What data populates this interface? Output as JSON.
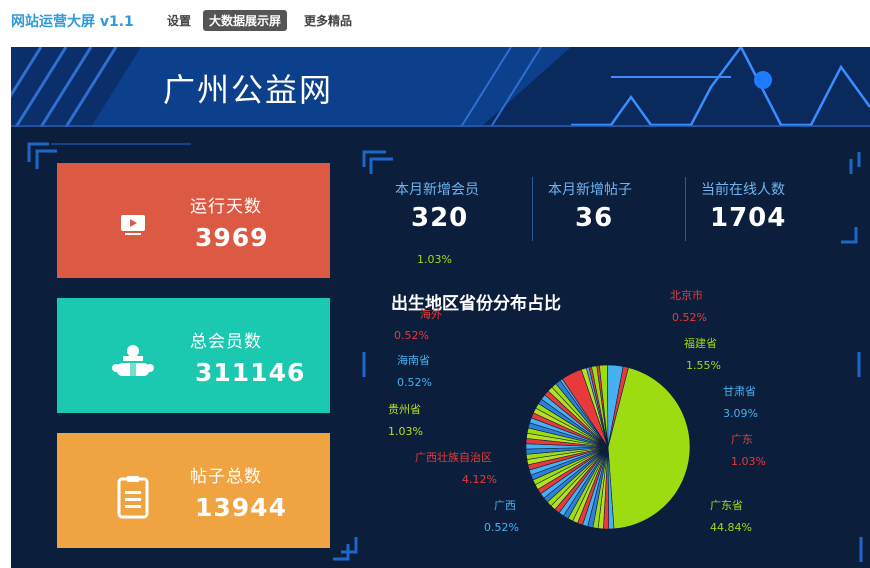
{
  "nav": {
    "app_title": "网站运营大屏 v1.1",
    "items": [
      "设置",
      "大数据展示屏",
      "更多精品"
    ]
  },
  "dashboard": {
    "site_title": "广州公益网",
    "cards": [
      {
        "label": "运行天数",
        "value": "3969",
        "icon": "tv-play-icon",
        "color": "#dc5a43"
      },
      {
        "label": "总会员数",
        "value": "311146",
        "icon": "users-icon",
        "color": "#1bc8b0"
      },
      {
        "label": "帖子总数",
        "value": "13944",
        "icon": "clipboard-icon",
        "color": "#f0a441"
      }
    ],
    "stats": [
      {
        "label": "本月新增会员",
        "value": "320"
      },
      {
        "label": "本月新增帖子",
        "value": "36"
      },
      {
        "label": "当前在线人数",
        "value": "1704"
      }
    ]
  },
  "chart_data": {
    "type": "pie",
    "title": "出生地区省份分布占比",
    "slices": [
      {
        "name": "广东省",
        "value": 44.84,
        "color": "#9edc12"
      },
      {
        "name": "广西",
        "value": 0.52,
        "color": "#47b0f0"
      },
      {
        "name": "广西壮族自治区",
        "value": 4.12,
        "color": "#e83a3a"
      },
      {
        "name": "贵州省",
        "value": 1.03,
        "color": "#b8e020"
      },
      {
        "name": "海南省",
        "value": 0.52,
        "color": "#47b0f0"
      },
      {
        "name": "海外",
        "value": 0.52,
        "color": "#e83a3a"
      },
      {
        "name": "",
        "value": 1.03,
        "color": "#9edc12"
      },
      {
        "name": "北京市",
        "value": 0.52,
        "color": "#e83a3a"
      },
      {
        "name": "福建省",
        "value": 1.55,
        "color": "#9edc12"
      },
      {
        "name": "甘肃省",
        "value": 3.09,
        "color": "#47b0f0"
      },
      {
        "name": "广东",
        "value": 1.03,
        "color": "#e83a3a"
      }
    ],
    "labels": [
      {
        "name": "北京市",
        "pct": "0.52%"
      },
      {
        "name": "福建省",
        "pct": "1.55%"
      },
      {
        "name": "甘肃省",
        "pct": "3.09%"
      },
      {
        "name": "广东",
        "pct": "1.03%"
      },
      {
        "name": "广东省",
        "pct": "44.84%"
      },
      {
        "name": "广西",
        "pct": "0.52%"
      },
      {
        "name": "广西壮族自治区",
        "pct": "4.12%"
      },
      {
        "name": "贵州省",
        "pct": "1.03%"
      },
      {
        "name": "海南省",
        "pct": "0.52%"
      },
      {
        "name": "海外",
        "pct": "0.52%"
      },
      {
        "name": "",
        "pct": "1.03%"
      }
    ]
  }
}
